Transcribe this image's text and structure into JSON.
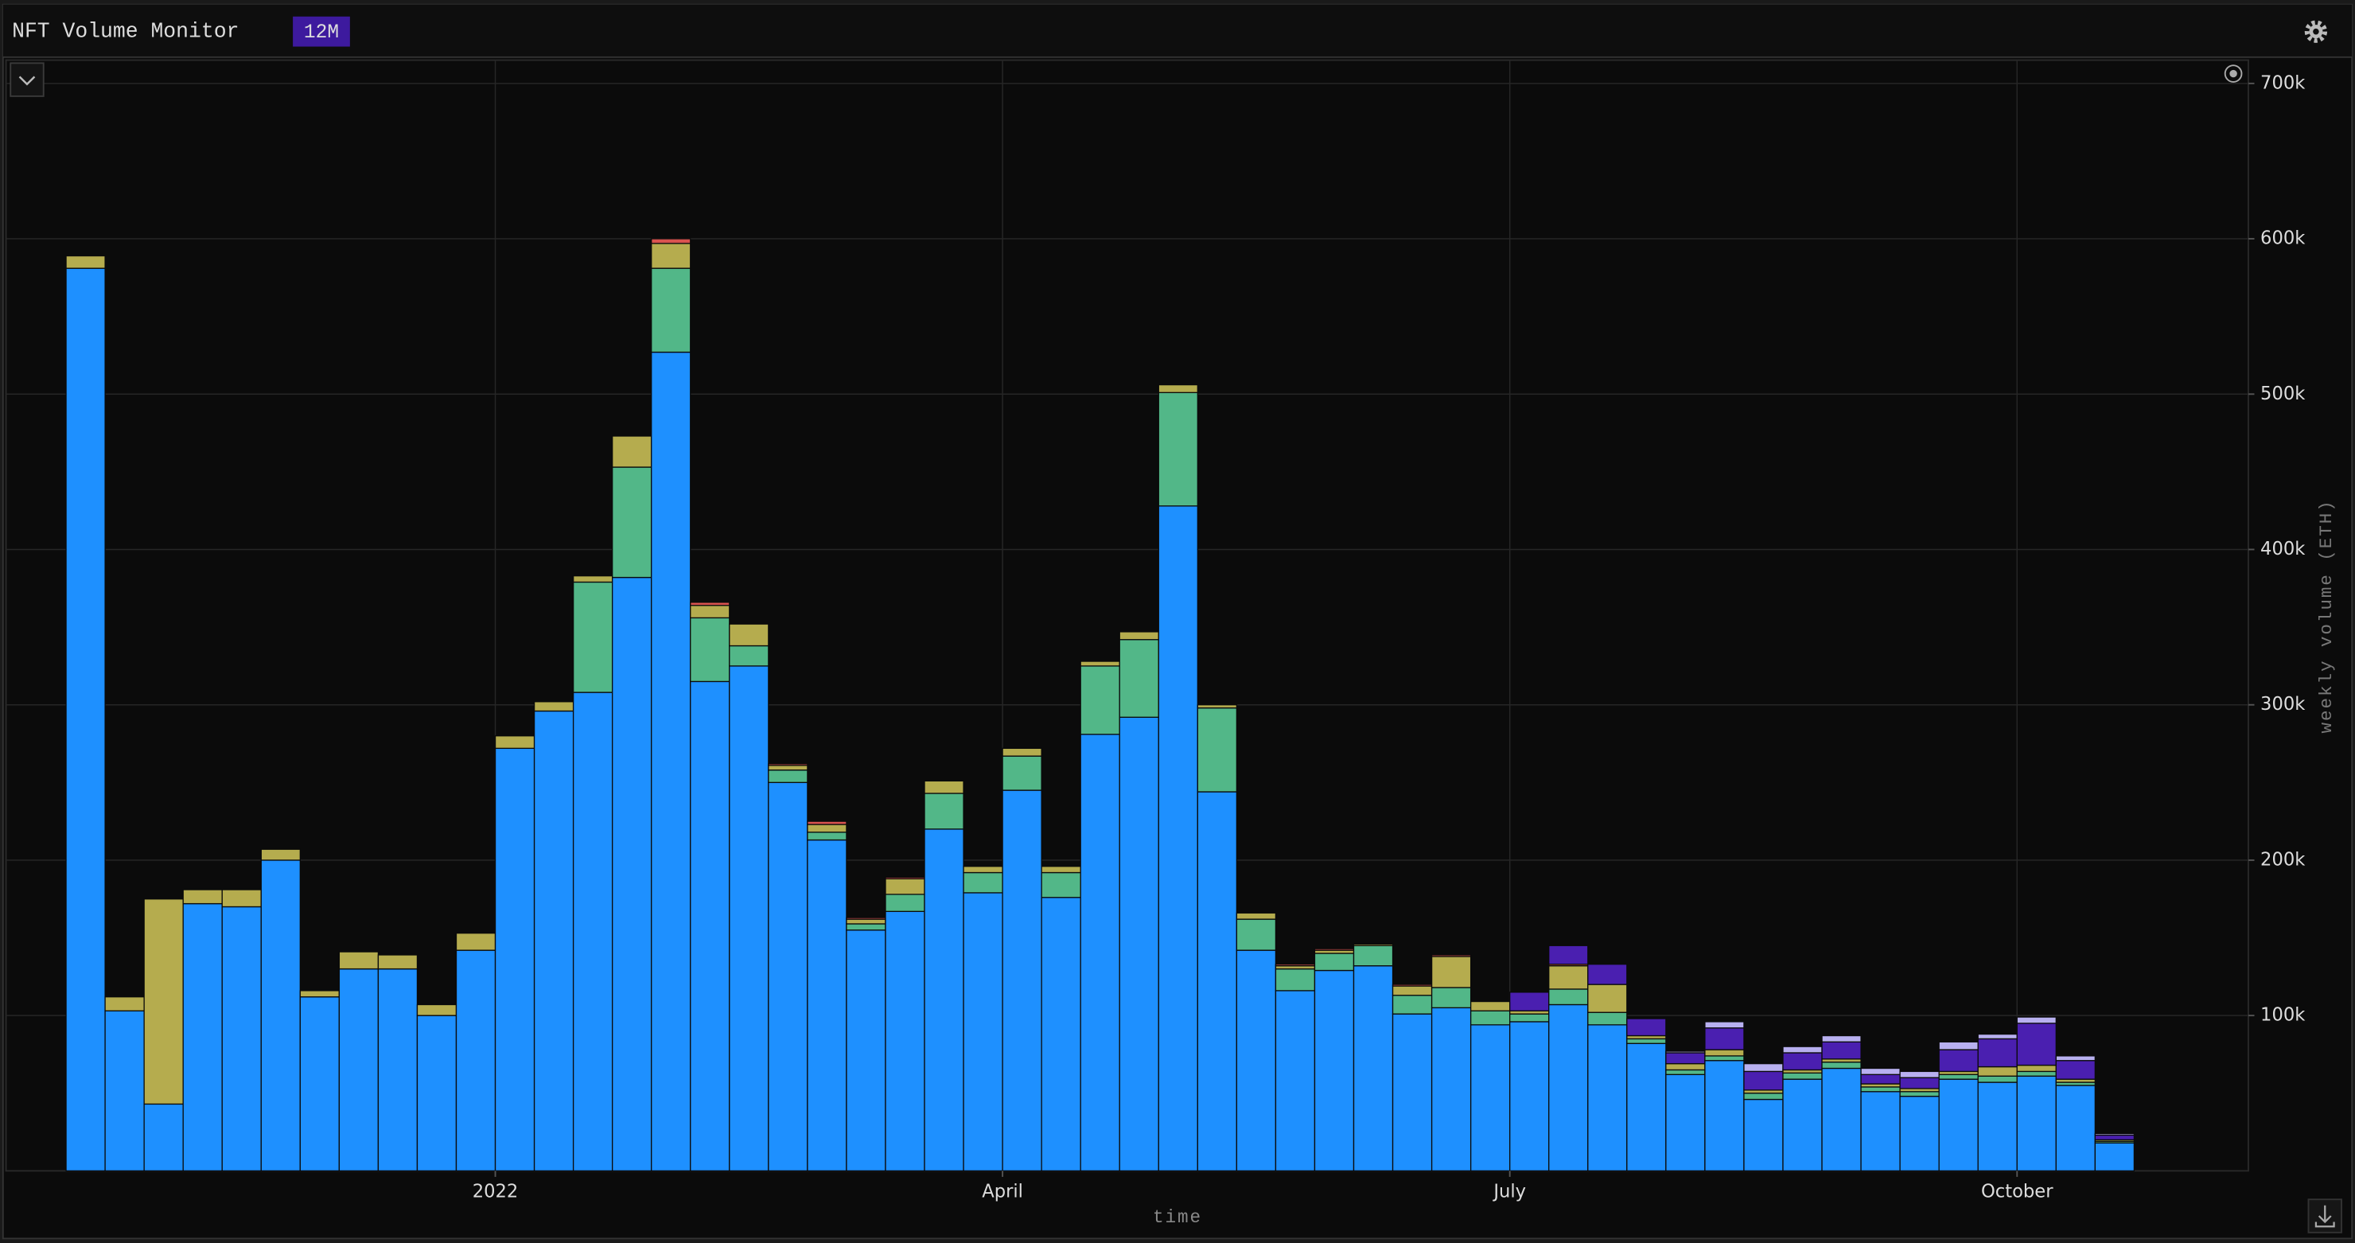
{
  "header": {
    "title": "NFT Volume Monitor",
    "range": "12M"
  },
  "chart_data": {
    "type": "bar",
    "stacked": true,
    "x_label": "time",
    "y_label": "weekly volume (ETH)",
    "categories": [
      null,
      null,
      null,
      null,
      null,
      null,
      null,
      null,
      null,
      null,
      null,
      "2022",
      null,
      null,
      null,
      null,
      null,
      null,
      null,
      null,
      null,
      null,
      null,
      null,
      "April",
      null,
      null,
      null,
      null,
      null,
      null,
      null,
      null,
      null,
      null,
      null,
      null,
      "July",
      null,
      null,
      null,
      null,
      null,
      null,
      null,
      null,
      null,
      null,
      null,
      null,
      "October",
      null,
      null
    ],
    "ylim": [
      0,
      715000
    ],
    "yticks": [
      {
        "value": 100000,
        "label": "100k"
      },
      {
        "value": 200000,
        "label": "200k"
      },
      {
        "value": 300000,
        "label": "300k"
      },
      {
        "value": 400000,
        "label": "400k"
      },
      {
        "value": 500000,
        "label": "500k"
      },
      {
        "value": 600000,
        "label": "600k"
      },
      {
        "value": 700000,
        "label": "700k"
      }
    ],
    "y_axis_side": "right",
    "grid": true,
    "series": [
      {
        "color": "#1e90ff",
        "values": [
          581000,
          103000,
          43000,
          172000,
          170000,
          200000,
          112000,
          130000,
          130000,
          100000,
          142000,
          272000,
          296000,
          308000,
          382000,
          527000,
          315000,
          325000,
          250000,
          213000,
          155000,
          167000,
          220000,
          179000,
          245000,
          176000,
          281000,
          292000,
          428000,
          244000,
          142000,
          116000,
          129000,
          132000,
          101000,
          105000,
          94000,
          96000,
          107000,
          94000,
          82000,
          62000,
          71000,
          46000,
          59000,
          66000,
          51000,
          48000,
          59000,
          57000,
          61000,
          55000,
          18000
        ]
      },
      {
        "color": "#52b788",
        "values": [
          0,
          0,
          0,
          0,
          0,
          0,
          0,
          0,
          0,
          0,
          0,
          0,
          0,
          71000,
          71000,
          54000,
          41000,
          13000,
          8000,
          5000,
          4000,
          11000,
          23000,
          13000,
          22000,
          16000,
          44000,
          50000,
          73000,
          54000,
          20000,
          14000,
          11000,
          13000,
          12000,
          13000,
          9000,
          5000,
          10000,
          8000,
          3000,
          3000,
          3000,
          4000,
          4000,
          4000,
          3000,
          3000,
          3000,
          4000,
          3000,
          2000,
          1000
        ]
      },
      {
        "color": "#b5ac4e",
        "values": [
          8000,
          9000,
          132000,
          9000,
          11000,
          7000,
          4000,
          11000,
          9000,
          7000,
          11000,
          8000,
          6000,
          4000,
          20000,
          16000,
          8000,
          14000,
          3000,
          5000,
          3000,
          10000,
          8000,
          4000,
          5000,
          4000,
          3000,
          5000,
          5000,
          2000,
          4000,
          2000,
          2000,
          1000,
          6000,
          20000,
          6000,
          2000,
          15000,
          18000,
          2000,
          4000,
          4000,
          2000,
          2000,
          2000,
          2000,
          2000,
          2000,
          6000,
          4000,
          2000,
          1000
        ]
      },
      {
        "color": "#d9534f",
        "values": [
          0,
          0,
          0,
          0,
          0,
          0,
          0,
          0,
          0,
          0,
          0,
          0,
          0,
          0,
          0,
          3000,
          2000,
          0,
          1000,
          2000,
          1000,
          1000,
          0,
          0,
          0,
          0,
          0,
          0,
          0,
          0,
          0,
          1000,
          1000,
          0,
          1000,
          1000,
          0,
          0,
          1000,
          0,
          0,
          0,
          0,
          0,
          0,
          0,
          0,
          0,
          0,
          0,
          0,
          0,
          0
        ]
      },
      {
        "color": "#4a1fb0",
        "values": [
          0,
          0,
          0,
          0,
          0,
          0,
          0,
          0,
          0,
          0,
          0,
          0,
          0,
          0,
          0,
          0,
          0,
          0,
          0,
          0,
          0,
          0,
          0,
          0,
          0,
          0,
          0,
          0,
          0,
          0,
          0,
          0,
          0,
          0,
          0,
          0,
          0,
          12000,
          12000,
          13000,
          11000,
          7000,
          14000,
          12000,
          11000,
          11000,
          6000,
          7000,
          14000,
          18000,
          27000,
          12000,
          3000
        ]
      },
      {
        "color": "#b8b0f0",
        "values": [
          0,
          0,
          0,
          0,
          0,
          0,
          0,
          0,
          0,
          0,
          0,
          0,
          0,
          0,
          0,
          0,
          0,
          0,
          0,
          0,
          0,
          0,
          0,
          0,
          0,
          0,
          0,
          0,
          0,
          0,
          0,
          0,
          0,
          0,
          0,
          0,
          0,
          0,
          0,
          0,
          0,
          1000,
          4000,
          5000,
          4000,
          4000,
          4000,
          4000,
          5000,
          3000,
          4000,
          3000,
          1000
        ]
      }
    ]
  }
}
